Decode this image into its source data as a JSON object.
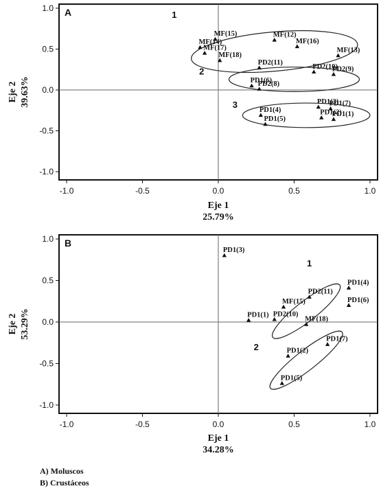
{
  "chart_data": [
    {
      "type": "scatter",
      "panel_label": "A",
      "xlabel": "Eje 1",
      "xpercent": "25.79%",
      "ylabel": "Eje 2",
      "ypercent": "39.63%",
      "xlim": [
        -1.05,
        1.05
      ],
      "ylim": [
        -1.1,
        1.05
      ],
      "xticks": [
        "-1.0",
        "-0.5",
        "0.0",
        "0.5",
        "1.0"
      ],
      "yticks": [
        "1.0",
        "0.5",
        "0.0",
        "-0.5",
        "-1.0"
      ],
      "grid": false,
      "points": [
        {
          "label": "MF(15)",
          "x": -0.02,
          "y": 0.62
        },
        {
          "label": "MF(12)",
          "x": 0.37,
          "y": 0.61
        },
        {
          "label": "MF(16)",
          "x": 0.52,
          "y": 0.53
        },
        {
          "label": "MF(13)",
          "x": 0.79,
          "y": 0.42
        },
        {
          "label": "MF(14)",
          "x": -0.12,
          "y": 0.52
        },
        {
          "label": "MF(17)",
          "x": -0.09,
          "y": 0.45
        },
        {
          "label": "MF(18)",
          "x": 0.01,
          "y": 0.36
        },
        {
          "label": "PD2(10)",
          "x": 0.63,
          "y": 0.22
        },
        {
          "label": "PD2(9)",
          "x": 0.76,
          "y": 0.19
        },
        {
          "label": "PD2(11)",
          "x": 0.27,
          "y": 0.27
        },
        {
          "label": "PD1(6)",
          "x": 0.22,
          "y": 0.05
        },
        {
          "label": "PD2(8)",
          "x": 0.27,
          "y": 0.01
        },
        {
          "label": "PD1(4)",
          "x": 0.28,
          "y": -0.31
        },
        {
          "label": "PD1(3)",
          "x": 0.66,
          "y": -0.21
        },
        {
          "label": "PD1(7)",
          "x": 0.74,
          "y": -0.23
        },
        {
          "label": "PD1(2)",
          "x": 0.68,
          "y": -0.34
        },
        {
          "label": "PD1(1)",
          "x": 0.76,
          "y": -0.36
        },
        {
          "label": "PD1(5)",
          "x": 0.31,
          "y": -0.42
        }
      ],
      "groups": [
        {
          "label": "1",
          "x": -0.29,
          "y": 0.88
        },
        {
          "label": "2",
          "x": -0.11,
          "y": 0.19
        },
        {
          "label": "3",
          "x": 0.11,
          "y": -0.22
        }
      ],
      "ellipses": [
        {
          "cx": 0.37,
          "cy": 0.47,
          "rx": 0.55,
          "ry": 0.24,
          "rot": -5
        },
        {
          "cx": 0.5,
          "cy": 0.13,
          "rx": 0.43,
          "ry": 0.15,
          "rot": 0
        },
        {
          "cx": 0.58,
          "cy": -0.31,
          "rx": 0.42,
          "ry": 0.15,
          "rot": 0
        }
      ]
    },
    {
      "type": "scatter",
      "panel_label": "B",
      "xlabel": "Eje 1",
      "xpercent": "34.28%",
      "ylabel": "Eje 2",
      "ypercent": "53.29%",
      "xlim": [
        -1.05,
        1.05
      ],
      "ylim": [
        -1.1,
        1.05
      ],
      "xticks": [
        "-1.0",
        "-0.5",
        "0.0",
        "0.5",
        "1.0"
      ],
      "yticks": [
        "1.0",
        "0.5",
        "0.0",
        "-0.5",
        "-1.0"
      ],
      "grid": false,
      "points": [
        {
          "label": "PD1(3)",
          "x": 0.04,
          "y": 0.8
        },
        {
          "label": "PD2(11)",
          "x": 0.6,
          "y": 0.3
        },
        {
          "label": "PD1(4)",
          "x": 0.86,
          "y": 0.41
        },
        {
          "label": "MF(15)",
          "x": 0.43,
          "y": 0.18
        },
        {
          "label": "PD1(6)",
          "x": 0.86,
          "y": 0.2
        },
        {
          "label": "PD2(10)",
          "x": 0.37,
          "y": 0.03
        },
        {
          "label": "PD1(1)",
          "x": 0.2,
          "y": 0.02
        },
        {
          "label": "MF(18)",
          "x": 0.58,
          "y": -0.03
        },
        {
          "label": "PD1(7)",
          "x": 0.72,
          "y": -0.27
        },
        {
          "label": "PD1(2)",
          "x": 0.46,
          "y": -0.41
        },
        {
          "label": "PD1(5)",
          "x": 0.42,
          "y": -0.74
        }
      ],
      "groups": [
        {
          "label": "1",
          "x": 0.6,
          "y": 0.67
        },
        {
          "label": "2",
          "x": 0.25,
          "y": -0.34
        }
      ],
      "ellipses": [
        {
          "cx": 0.58,
          "cy": 0.13,
          "rx": 0.28,
          "ry": 0.12,
          "rot": -38
        },
        {
          "cx": 0.58,
          "cy": -0.46,
          "rx": 0.3,
          "ry": 0.12,
          "rot": -38
        }
      ]
    }
  ],
  "captions": {
    "a": "A) Moluscos",
    "b": "B) Crustáceos"
  }
}
